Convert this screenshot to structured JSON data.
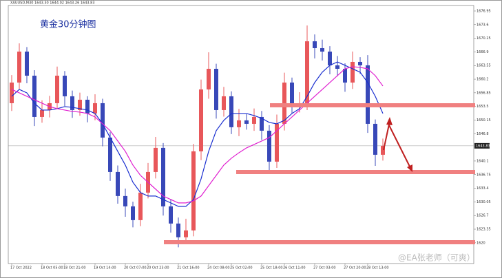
{
  "chart_data": {
    "type": "candlestick",
    "header": "XAUUSD,M30 1643.30 1644.02 1643.26 1643.83",
    "title": "黄金30分钟图",
    "watermark": "@EA张老师（可爽）",
    "categories": [
      "17 Oct 2022",
      null,
      null,
      null,
      "18 Oct 05:00",
      null,
      null,
      "18 Oct 21:00",
      null,
      null,
      null,
      "19 Oct 14:00",
      null,
      null,
      null,
      "20 Oct 07:00",
      null,
      null,
      "20 Oct 23:00",
      null,
      null,
      null,
      "21 Oct 16:00",
      null,
      null,
      null,
      "24 Oct 08:00",
      null,
      null,
      "25 Oct 02:00",
      null,
      null,
      null,
      "25 Oct 18:00",
      null,
      null,
      "26 Oct 11:00",
      null,
      null,
      null,
      "27 Oct 03:00",
      null,
      null,
      null,
      "27 Oct 20:00",
      null,
      null,
      "28 Oct 13:00",
      null,
      null
    ],
    "open": [
      1654.3,
      1659.37,
      1666.98,
      1661.06,
      1650.92,
      1652.61,
      1654.3,
      1661.06,
      1655.99,
      1652.61,
      1655.15,
      1651.77,
      1654.3,
      1645.85,
      1637.4,
      1631.49,
      1628.95,
      1625.57,
      1632.33,
      1637.4,
      1643.32,
      1628.95,
      1624.73,
      1621.35,
      1623.04,
      1642.47,
      1657.68,
      1662.75,
      1652.61,
      1655.99,
      1648.39,
      1650.08,
      1649.23,
      1650.92,
      1647.54,
      1639.94,
      1649.23,
      1659.37,
      1653.46,
      1654.3,
      1669.51,
      1667.82,
      1666.98,
      1663.6,
      1662.75,
      1659.37,
      1664.44,
      1663.6,
      1649.23,
      1641.63
    ],
    "high": [
      1661.2,
      1669.0,
      1668.1,
      1662.4,
      1655.0,
      1656.1,
      1663.3,
      1662.2,
      1657.4,
      1656.9,
      1656.0,
      1656.5,
      1655.4,
      1647.2,
      1639.0,
      1633.3,
      1630.1,
      1634.5,
      1639.6,
      1646.0,
      1644.5,
      1630.8,
      1626.2,
      1625.9,
      1644.3,
      1660.1,
      1666.8,
      1664.0,
      1658.3,
      1657.2,
      1652.9,
      1651.6,
      1653.0,
      1652.4,
      1648.9,
      1651.5,
      1661.8,
      1660.6,
      1657.0,
      1673.4,
      1671.2,
      1669.9,
      1668.3,
      1665.9,
      1664.1,
      1667.0,
      1665.6,
      1666.1,
      1650.3,
      1645.6
    ],
    "low": [
      1652.4,
      1657.8,
      1659.2,
      1648.7,
      1649.5,
      1650.8,
      1652.9,
      1653.6,
      1650.7,
      1651.2,
      1649.6,
      1650.1,
      1643.7,
      1635.2,
      1629.6,
      1626.4,
      1623.8,
      1624.1,
      1630.9,
      1635.8,
      1626.7,
      1622.5,
      1618.9,
      1619.8,
      1621.6,
      1640.3,
      1655.4,
      1650.5,
      1651.0,
      1646.7,
      1646.2,
      1647.8,
      1647.5,
      1645.3,
      1637.2,
      1638.4,
      1647.6,
      1651.7,
      1652.0,
      1652.6,
      1665.3,
      1664.8,
      1661.4,
      1660.9,
      1657.1,
      1657.8,
      1661.5,
      1647.0,
      1638.9,
      1640.2
    ],
    "close": [
      1659.37,
      1666.98,
      1661.06,
      1650.92,
      1652.61,
      1654.3,
      1661.06,
      1655.99,
      1652.61,
      1655.15,
      1651.77,
      1654.3,
      1645.85,
      1637.4,
      1631.49,
      1628.95,
      1625.57,
      1632.33,
      1637.4,
      1643.32,
      1628.95,
      1624.73,
      1621.35,
      1623.04,
      1642.47,
      1657.68,
      1662.75,
      1652.61,
      1655.99,
      1648.39,
      1650.08,
      1649.23,
      1650.92,
      1647.54,
      1639.94,
      1649.23,
      1659.37,
      1653.46,
      1654.3,
      1669.51,
      1667.82,
      1666.98,
      1663.6,
      1662.75,
      1659.37,
      1664.44,
      1663.6,
      1649.23,
      1641.63,
      1643.83
    ],
    "up_color": "#e8575a",
    "down_color": "#3848b8",
    "series": [
      {
        "color": "#1a2fd0",
        "values": [
          1655.99,
          1657.68,
          1656.84,
          1654.3,
          1652.61,
          1652.61,
          1652.95,
          1653.46,
          1653.29,
          1652.95,
          1652.61,
          1651.77,
          1649.23,
          1645.85,
          1642.47,
          1639.09,
          1634.87,
          1632.33,
          1631.49,
          1631.49,
          1630.64,
          1629.8,
          1628.95,
          1628.95,
          1630.64,
          1635.71,
          1642.47,
          1647.54,
          1650.08,
          1651.77,
          1651.77,
          1651.77,
          1651.26,
          1650.59,
          1649.57,
          1649.23,
          1650.08,
          1651.77,
          1652.95,
          1655.99,
          1659.37,
          1661.91,
          1663.6,
          1664.44,
          1663.6,
          1662.75,
          1661.91,
          1659.37,
          1655.99,
          1651.77
        ]
      },
      {
        "color": "#e020d0",
        "values": [
          1657.68,
          1656.84,
          1655.99,
          1655.15,
          1654.3,
          1653.46,
          1652.95,
          1652.61,
          1652.28,
          1652.11,
          1651.77,
          1650.92,
          1649.23,
          1647.54,
          1645.01,
          1642.47,
          1639.09,
          1636.56,
          1634.87,
          1633.18,
          1631.49,
          1630.64,
          1629.8,
          1629.8,
          1630.3,
          1631.49,
          1634.02,
          1636.56,
          1639.09,
          1640.78,
          1642.13,
          1643.32,
          1644.16,
          1645.01,
          1645.85,
          1647.54,
          1649.23,
          1650.92,
          1652.61,
          1654.3,
          1655.99,
          1657.68,
          1659.37,
          1661.06,
          1662.75,
          1663.26,
          1663.09,
          1662.75,
          1661.06,
          1658.53
        ]
      }
    ],
    "current_price": 1643.83,
    "ylim": [
      1614.9,
      1678.3
    ],
    "yticks": [
      1676.95,
      1673.6,
      1670.25,
      1666.9,
      1663.55,
      1660.2,
      1656.85,
      1653.5,
      1650.15,
      1646.8,
      1640.1,
      1636.75,
      1633.4,
      1630.05,
      1626.7,
      1623.35,
      1620
    ]
  }
}
